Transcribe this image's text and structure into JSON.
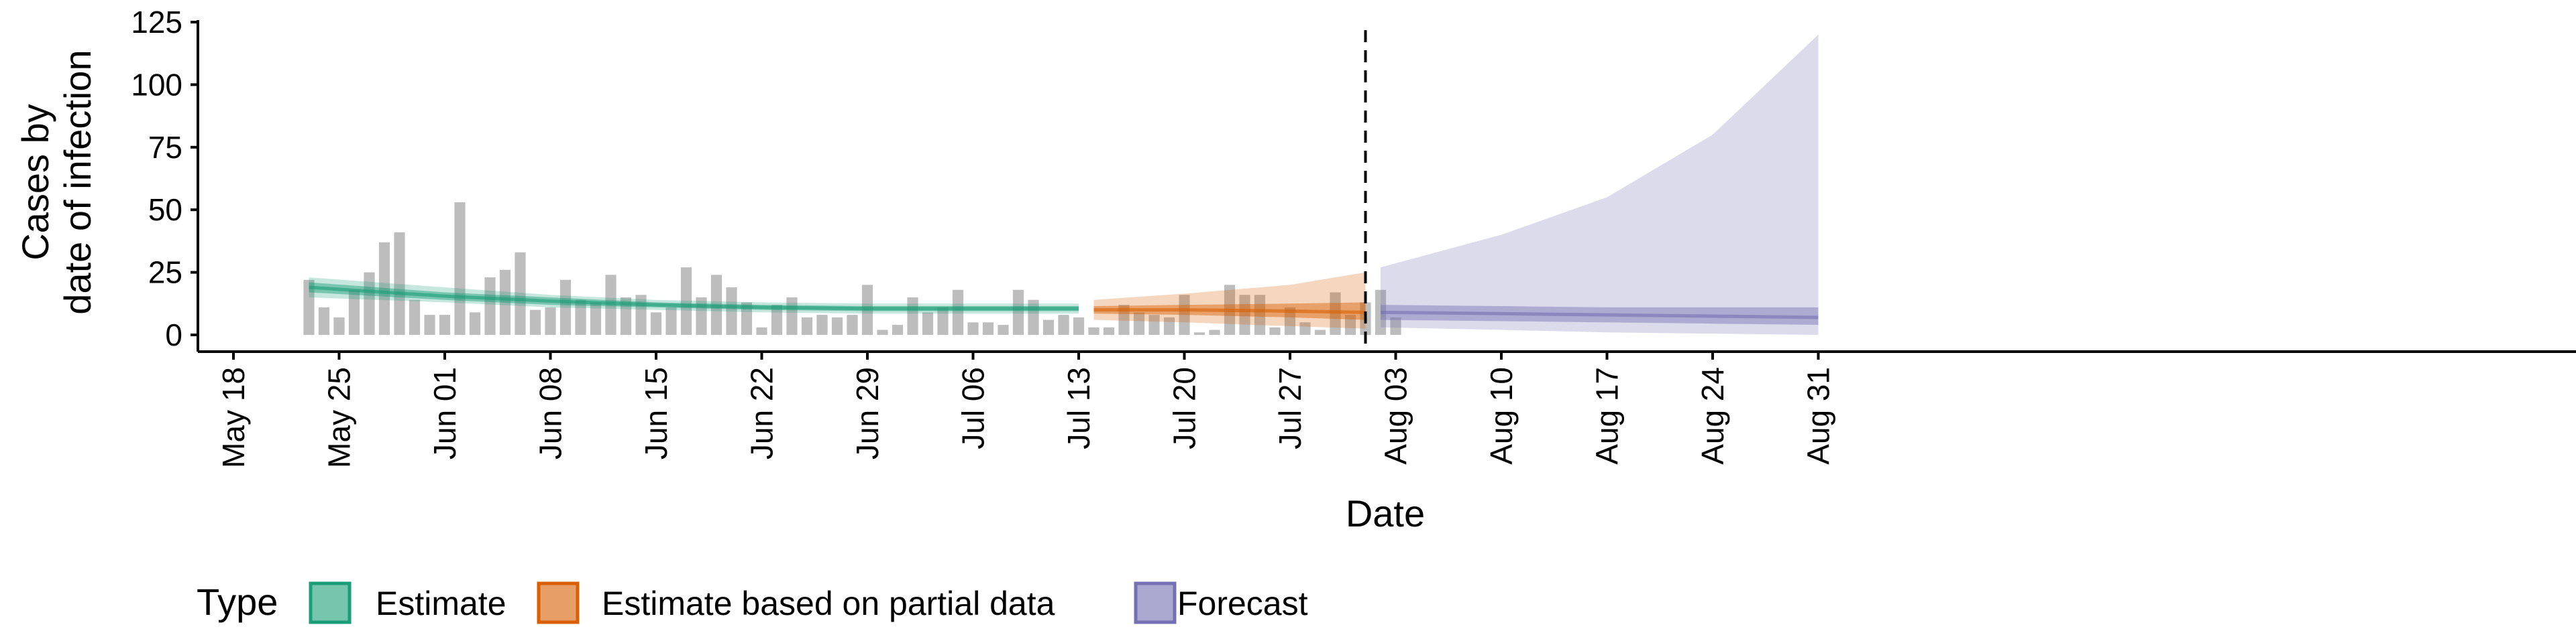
{
  "chart_data": {
    "type": "bar",
    "xlabel": "Date",
    "ylabel_lines": [
      "Cases by",
      "date of infection"
    ],
    "ylim": [
      0,
      125
    ],
    "y_ticks": [
      "0",
      "25",
      "50",
      "75",
      "100",
      "125"
    ],
    "y_tick_values": [
      0,
      25,
      50,
      75,
      100,
      125
    ],
    "x_start_date": "May 18",
    "x_range_days": [
      -2,
      105
    ],
    "x_ticks": [
      {
        "label": "May 18",
        "day": 0
      },
      {
        "label": "May 25",
        "day": 7
      },
      {
        "label": "Jun 01",
        "day": 14
      },
      {
        "label": "Jun 08",
        "day": 21
      },
      {
        "label": "Jun 15",
        "day": 28
      },
      {
        "label": "Jun 22",
        "day": 35
      },
      {
        "label": "Jun 29",
        "day": 42
      },
      {
        "label": "Jul 06",
        "day": 49
      },
      {
        "label": "Jul 13",
        "day": 56
      },
      {
        "label": "Jul 20",
        "day": 63
      },
      {
        "label": "Jul 27",
        "day": 70
      },
      {
        "label": "Aug 03",
        "day": 77
      },
      {
        "label": "Aug 10",
        "day": 84
      },
      {
        "label": "Aug 17",
        "day": 91
      },
      {
        "label": "Aug 24",
        "day": 98
      },
      {
        "label": "Aug 31",
        "day": 105
      }
    ],
    "forecast_start_day": 75,
    "bars": {
      "start_day": 5,
      "values": [
        22,
        11,
        7,
        18,
        25,
        37,
        41,
        14,
        8,
        8,
        53,
        9,
        23,
        26,
        33,
        10,
        11,
        22,
        14,
        13,
        24,
        15,
        16,
        9,
        11,
        27,
        15,
        24,
        19,
        13,
        3,
        12,
        15,
        7,
        8,
        7,
        8,
        20,
        2,
        4,
        15,
        9,
        11,
        18,
        5,
        5,
        4,
        18,
        14,
        6,
        8,
        7,
        3,
        3,
        12,
        9,
        8,
        7,
        16,
        1,
        2,
        20,
        16,
        16,
        3,
        11,
        5,
        2,
        17,
        8,
        13,
        18,
        7
      ]
    },
    "legend": {
      "title": "Type",
      "items": [
        {
          "label": "Estimate",
          "color": "#1b9e77"
        },
        {
          "label": "Estimate based on partial data",
          "color": "#d95f02"
        },
        {
          "label": "Forecast",
          "color": "#7570b3"
        }
      ]
    },
    "series": [
      {
        "name": "Estimate",
        "color": "#1b9e77",
        "days": [
          5,
          14,
          21,
          28,
          35,
          42,
          49,
          56
        ],
        "median": [
          19,
          15.5,
          13.5,
          12,
          11,
          10.5,
          10.5,
          10.5
        ],
        "inner_low": [
          17,
          14,
          12,
          11,
          10,
          9.5,
          9.5,
          9.5
        ],
        "inner_high": [
          21,
          17,
          15,
          13,
          12,
          11.5,
          11.5,
          11.5
        ],
        "outer_low": [
          15,
          13,
          11,
          10,
          9,
          8.5,
          8.5,
          8.5
        ],
        "outer_high": [
          23,
          19,
          16,
          14,
          13,
          12.5,
          12.5,
          12.5
        ]
      },
      {
        "name": "Estimate based on partial data",
        "color": "#d95f02",
        "days": [
          57,
          63,
          70,
          75
        ],
        "median": [
          10,
          10,
          9.5,
          9
        ],
        "inner_low": [
          8.5,
          8,
          7,
          6
        ],
        "inner_high": [
          11.5,
          12,
          12.5,
          13
        ],
        "outer_low": [
          6,
          5,
          3.5,
          2.5
        ],
        "outer_high": [
          14,
          16.5,
          20,
          25
        ]
      },
      {
        "name": "Forecast",
        "color": "#7570b3",
        "days": [
          76,
          84,
          91,
          98,
          105
        ],
        "median": [
          9,
          8.5,
          8,
          7.5,
          7
        ],
        "inner_low": [
          6,
          5.5,
          5,
          4.5,
          4
        ],
        "inner_high": [
          12,
          11.5,
          11,
          11,
          11
        ],
        "outer_low": [
          3,
          2,
          1,
          0.5,
          0
        ],
        "outer_high": [
          27,
          40,
          55,
          80,
          120
        ]
      }
    ]
  }
}
